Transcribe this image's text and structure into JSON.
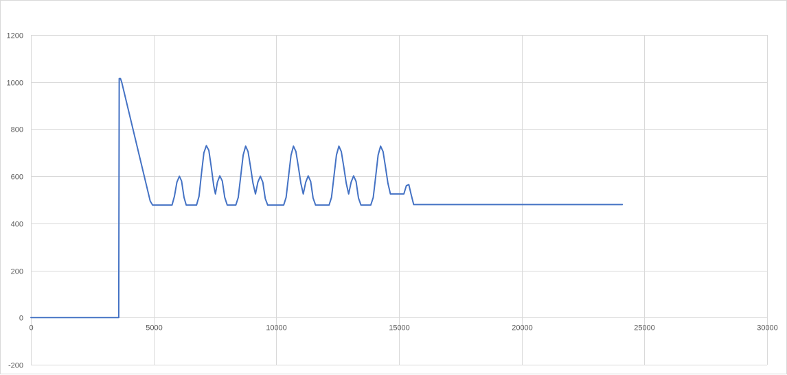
{
  "chart_data": {
    "type": "scatter",
    "title": "",
    "xlabel": "",
    "ylabel": "",
    "xlim": [
      0,
      30000
    ],
    "ylim": [
      -200,
      1200
    ],
    "x_ticks": [
      0,
      5000,
      10000,
      15000,
      20000,
      25000,
      30000
    ],
    "y_ticks": [
      -200,
      0,
      200,
      400,
      600,
      800,
      1000,
      1200
    ],
    "grid": true,
    "legend": "none",
    "series": [
      {
        "color": "#4472c4",
        "points": [
          [
            0,
            0
          ],
          [
            3580,
            0
          ],
          [
            3600,
            1015
          ],
          [
            3650,
            1015
          ],
          [
            3700,
            1000
          ],
          [
            4860,
            495
          ],
          [
            4960,
            478
          ],
          [
            5750,
            478
          ],
          [
            5850,
            515
          ],
          [
            5950,
            575
          ],
          [
            6050,
            600
          ],
          [
            6140,
            580
          ],
          [
            6240,
            510
          ],
          [
            6330,
            478
          ],
          [
            6750,
            478
          ],
          [
            6850,
            515
          ],
          [
            6950,
            610
          ],
          [
            7050,
            700
          ],
          [
            7150,
            730
          ],
          [
            7250,
            710
          ],
          [
            7350,
            640
          ],
          [
            7450,
            560
          ],
          [
            7520,
            525
          ],
          [
            7600,
            575
          ],
          [
            7700,
            602
          ],
          [
            7800,
            580
          ],
          [
            7900,
            510
          ],
          [
            8000,
            478
          ],
          [
            8350,
            478
          ],
          [
            8450,
            510
          ],
          [
            8550,
            600
          ],
          [
            8650,
            690
          ],
          [
            8750,
            728
          ],
          [
            8850,
            705
          ],
          [
            8950,
            640
          ],
          [
            9050,
            570
          ],
          [
            9150,
            525
          ],
          [
            9250,
            575
          ],
          [
            9350,
            600
          ],
          [
            9450,
            575
          ],
          [
            9550,
            505
          ],
          [
            9650,
            478
          ],
          [
            10300,
            478
          ],
          [
            10400,
            510
          ],
          [
            10500,
            600
          ],
          [
            10600,
            690
          ],
          [
            10700,
            728
          ],
          [
            10800,
            705
          ],
          [
            10900,
            640
          ],
          [
            11000,
            570
          ],
          [
            11100,
            525
          ],
          [
            11200,
            575
          ],
          [
            11300,
            602
          ],
          [
            11400,
            578
          ],
          [
            11500,
            508
          ],
          [
            11600,
            478
          ],
          [
            12150,
            478
          ],
          [
            12250,
            510
          ],
          [
            12350,
            600
          ],
          [
            12450,
            690
          ],
          [
            12550,
            728
          ],
          [
            12650,
            705
          ],
          [
            12750,
            640
          ],
          [
            12850,
            570
          ],
          [
            12950,
            525
          ],
          [
            13050,
            575
          ],
          [
            13150,
            602
          ],
          [
            13250,
            578
          ],
          [
            13350,
            508
          ],
          [
            13450,
            478
          ],
          [
            13850,
            478
          ],
          [
            13950,
            510
          ],
          [
            14050,
            600
          ],
          [
            14150,
            690
          ],
          [
            14250,
            728
          ],
          [
            14350,
            705
          ],
          [
            14450,
            640
          ],
          [
            14550,
            570
          ],
          [
            14650,
            525
          ],
          [
            15200,
            525
          ],
          [
            15300,
            560
          ],
          [
            15400,
            565
          ],
          [
            15500,
            520
          ],
          [
            15600,
            480
          ],
          [
            24100,
            480
          ]
        ]
      }
    ]
  }
}
